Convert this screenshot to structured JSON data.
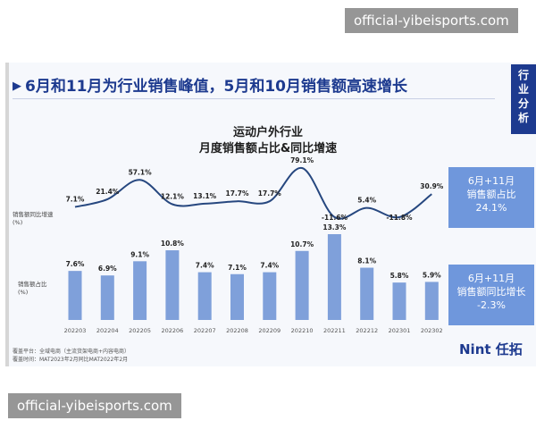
{
  "watermark": {
    "text": "official-yibeisports.com"
  },
  "headline": "6月和11月为行业销售峰值，5月和10月销售额高速增长",
  "side_tab": [
    "行",
    "业",
    "分",
    "析"
  ],
  "chart_title": {
    "line1": "运动户外行业",
    "line2": "月度销售额占比&同比增速"
  },
  "chart_data": {
    "type": "bar+line",
    "categories": [
      "202203",
      "202204",
      "202205",
      "202206",
      "202207",
      "202208",
      "202209",
      "202210",
      "202211",
      "202212",
      "202301",
      "202302"
    ],
    "series": [
      {
        "name": "销售额占比",
        "row_label": [
          "销售额占比",
          "(%)"
        ],
        "type": "bar",
        "values": [
          7.6,
          6.9,
          9.1,
          10.8,
          7.4,
          7.1,
          7.4,
          10.7,
          13.3,
          8.1,
          5.8,
          5.9
        ],
        "labels": [
          "7.6%",
          "6.9%",
          "9.1%",
          "10.8%",
          "7.4%",
          "7.1%",
          "7.4%",
          "10.7%",
          "13.3%",
          "8.1%",
          "5.8%",
          "5.9%"
        ]
      },
      {
        "name": "销售额同比增速",
        "row_label": [
          "销售额同比增速",
          "(%)"
        ],
        "type": "line",
        "values": [
          7.1,
          21.4,
          57.1,
          12.1,
          13.1,
          17.7,
          17.7,
          79.1,
          -11.6,
          5.4,
          -11.8,
          30.9
        ],
        "labels": [
          "7.1%",
          "21.4%",
          "57.1%",
          "12.1%",
          "13.1%",
          "17.7%",
          "17.7%",
          "79.1%",
          "-11.6%",
          "5.4%",
          "-11.8%",
          "30.9%"
        ]
      }
    ],
    "grid": false,
    "legend": "left row labels"
  },
  "callouts": [
    {
      "line1": "6月+11月",
      "line2": "销售额占比",
      "value": "24.1%"
    },
    {
      "line1": "6月+11月",
      "line2": "销售额同比增长",
      "value": "-2.3%"
    }
  ],
  "footnotes": {
    "platform": "覆盖平台：全域电商（主流货架电商+内容电商）",
    "period": "覆盖时间：MAT2023年2月同比MAT2022年2月"
  },
  "logo": {
    "mark": "Nint",
    "cn": "任拓"
  },
  "colors": {
    "brand": "#1d3a8f",
    "bar": "#7fa0da",
    "line": "#26477f",
    "callout": "#6f97dc"
  }
}
